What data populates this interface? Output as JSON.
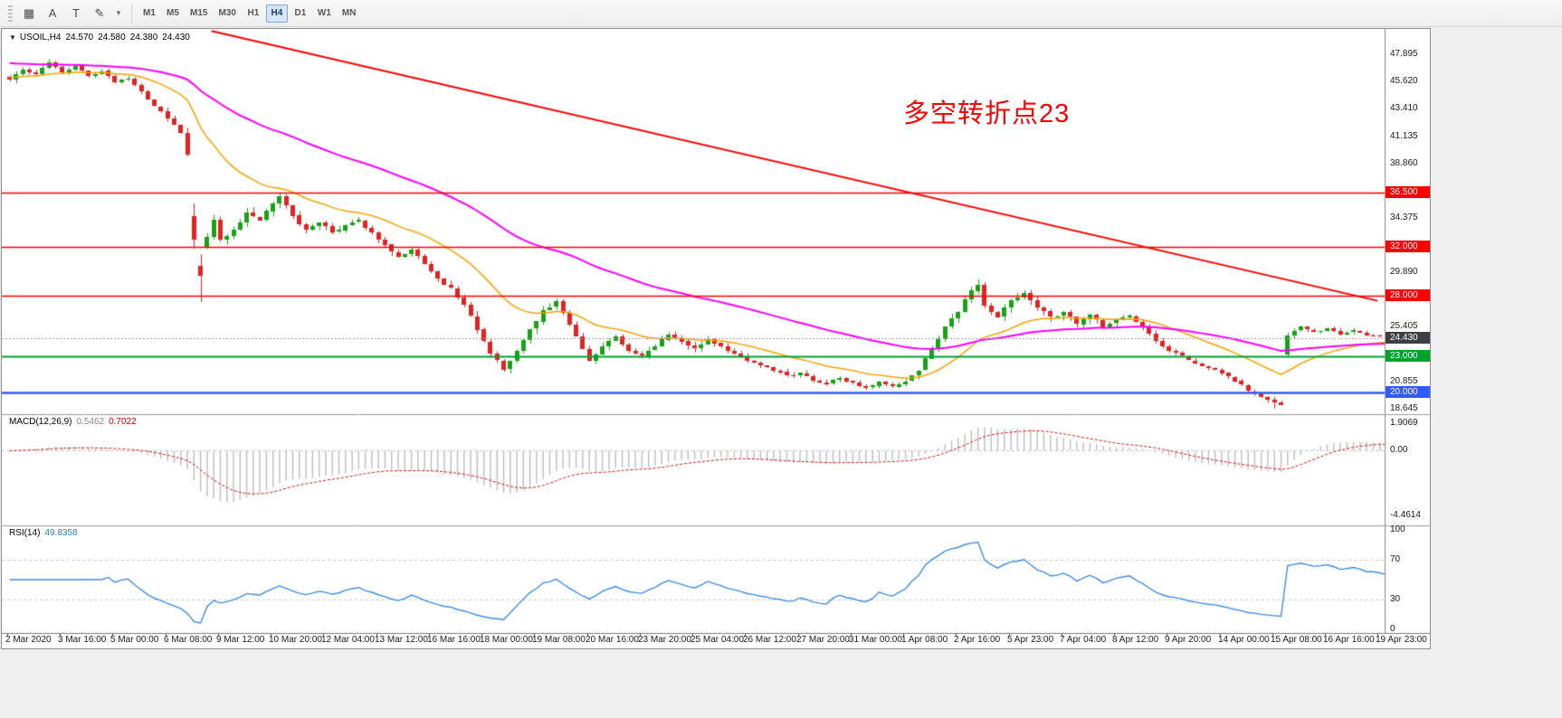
{
  "toolbar": {
    "icons": [
      {
        "name": "chart-grid-icon",
        "glyph": "▦"
      },
      {
        "name": "text-tool-icon",
        "glyph": "A"
      },
      {
        "name": "template-icon",
        "glyph": "T"
      },
      {
        "name": "draw-tools-icon",
        "glyph": "✎"
      },
      {
        "name": "chevron-down-icon",
        "glyph": "▾"
      }
    ],
    "timeframes": [
      "M1",
      "M5",
      "M15",
      "M30",
      "H1",
      "H4",
      "D1",
      "W1",
      "MN"
    ],
    "active_timeframe": "H4"
  },
  "chart": {
    "header": {
      "expander": "▼",
      "symbol": "USOIL,H4",
      "open": "24.570",
      "high": "24.580",
      "low": "24.380",
      "close": "24.430"
    },
    "annotation": {
      "text": "多空转折点23",
      "color": "#ff0000"
    },
    "price_axis": {
      "range": [
        18.2,
        49.9
      ],
      "labels": [
        {
          "label": "47.895",
          "value": 47.895
        },
        {
          "label": "45.620",
          "value": 45.62
        },
        {
          "label": "43.410",
          "value": 43.41
        },
        {
          "label": "41.135",
          "value": 41.135
        },
        {
          "label": "38.860",
          "value": 38.86
        },
        {
          "label": "34.375",
          "value": 34.375
        },
        {
          "label": "29.890",
          "value": 29.89
        },
        {
          "label": "25.405",
          "value": 25.405
        },
        {
          "label": "20.855",
          "value": 20.855
        },
        {
          "label": "18.645",
          "value": 18.645
        }
      ]
    },
    "levels": [
      {
        "label": "36.500",
        "value": 36.5,
        "color": "#ff0000",
        "width": 1.5
      },
      {
        "label": "32.000",
        "value": 32.0,
        "color": "#ff0000",
        "width": 1.5
      },
      {
        "label": "28.000",
        "value": 28.0,
        "color": "#ff0000",
        "width": 1.5
      },
      {
        "label": "23.000",
        "value": 23.0,
        "color": "#00a22e",
        "width": 2
      },
      {
        "label": "20.000",
        "value": 20.0,
        "color": "#2f5bff",
        "width": 2.5
      }
    ],
    "current_price": {
      "label": "24.430",
      "value": 24.43,
      "tag_color": "#3c3f44",
      "line_color": "#9aa0a6"
    },
    "trendline": {
      "from_bar": 31,
      "from_price": 49.8,
      "to_bar": 208,
      "to_price": 27.55,
      "color": "#ff0000",
      "width": 2
    },
    "time_axis": {
      "bars_per_label": 8,
      "labels": [
        "2 Mar 2020",
        "3 Mar 16:00",
        "5 Mar 00:00",
        "6 Mar 08:00",
        "9 Mar 12:00",
        "10 Mar 20:00",
        "12 Mar 04:00",
        "13 Mar 12:00",
        "16 Mar 16:00",
        "18 Mar 00:00",
        "19 Mar 08:00",
        "20 Mar 16:00",
        "23 Mar 20:00",
        "25 Mar 04:00",
        "26 Mar 12:00",
        "27 Mar 20:00",
        "31 Mar 00:00",
        "1 Apr 08:00",
        "2 Apr 16:00",
        "5 Apr 23:00",
        "7 Apr 04:00",
        "8 Apr 12:00",
        "9 Apr 20:00",
        "14 Apr 00:00",
        "15 Apr 08:00",
        "16 Apr 16:00",
        "19 Apr 23:00"
      ]
    }
  },
  "chart_data": {
    "type": "candlestick",
    "symbol": "USOIL",
    "timeframe": "H4",
    "bars_total": 210,
    "up_color": "#16a316",
    "down_color": "#e32222",
    "close_anchors": [
      [
        0,
        45.8,
        0.7
      ],
      [
        2,
        46.6,
        0.7
      ],
      [
        4,
        46.2,
        0.7
      ],
      [
        6,
        47.2,
        0.7
      ],
      [
        8,
        46.4,
        0.7
      ],
      [
        10,
        46.9,
        0.6
      ],
      [
        12,
        46.1,
        0.6
      ],
      [
        14,
        46.5,
        0.6
      ],
      [
        16,
        45.6,
        0.6
      ],
      [
        18,
        45.9,
        0.6
      ],
      [
        20,
        44.8,
        0.7
      ],
      [
        22,
        43.6,
        0.8
      ],
      [
        24,
        42.6,
        0.8
      ],
      [
        26,
        41.4,
        0.8
      ],
      [
        27,
        39.6,
        1.4
      ],
      [
        28,
        32.6,
        3.0
      ],
      [
        29,
        29.6,
        2.6
      ],
      [
        30,
        32.8,
        2.4
      ],
      [
        31,
        34.2,
        1.8
      ],
      [
        32,
        32.6,
        1.6
      ],
      [
        34,
        33.4,
        1.4
      ],
      [
        36,
        34.8,
        1.3
      ],
      [
        38,
        34.2,
        1.2
      ],
      [
        40,
        35.6,
        1.2
      ],
      [
        41,
        36.2,
        1.1
      ],
      [
        43,
        34.6,
        1.1
      ],
      [
        45,
        33.4,
        1.0
      ],
      [
        47,
        34.0,
        1.0
      ],
      [
        49,
        33.2,
        0.9
      ],
      [
        51,
        33.8,
        0.9
      ],
      [
        53,
        34.2,
        0.9
      ],
      [
        55,
        33.2,
        0.9
      ],
      [
        57,
        32.2,
        0.9
      ],
      [
        59,
        31.2,
        0.9
      ],
      [
        61,
        31.8,
        0.8
      ],
      [
        63,
        30.6,
        0.8
      ],
      [
        65,
        29.4,
        0.9
      ],
      [
        67,
        28.6,
        0.9
      ],
      [
        69,
        27.2,
        0.9
      ],
      [
        71,
        25.2,
        1.1
      ],
      [
        73,
        23.2,
        1.1
      ],
      [
        75,
        21.9,
        1.0
      ],
      [
        77,
        23.4,
        1.0
      ],
      [
        79,
        25.2,
        1.1
      ],
      [
        81,
        26.8,
        1.1
      ],
      [
        83,
        27.5,
        1.0
      ],
      [
        85,
        25.6,
        1.0
      ],
      [
        87,
        23.6,
        1.0
      ],
      [
        88,
        22.6,
        0.9
      ],
      [
        90,
        23.8,
        0.9
      ],
      [
        92,
        24.6,
        0.9
      ],
      [
        94,
        23.4,
        0.8
      ],
      [
        96,
        23.0,
        0.8
      ],
      [
        98,
        23.8,
        0.8
      ],
      [
        100,
        24.8,
        0.8
      ],
      [
        102,
        24.2,
        0.8
      ],
      [
        104,
        23.6,
        0.8
      ],
      [
        106,
        24.4,
        0.8
      ],
      [
        108,
        23.8,
        0.7
      ],
      [
        110,
        23.2,
        0.7
      ],
      [
        112,
        22.6,
        0.7
      ],
      [
        114,
        22.2,
        0.7
      ],
      [
        116,
        21.8,
        0.7
      ],
      [
        118,
        21.4,
        0.7
      ],
      [
        120,
        21.6,
        0.7
      ],
      [
        122,
        21.0,
        0.6
      ],
      [
        124,
        20.7,
        0.6
      ],
      [
        126,
        21.2,
        0.6
      ],
      [
        128,
        20.8,
        0.6
      ],
      [
        130,
        20.4,
        0.6
      ],
      [
        132,
        20.9,
        0.6
      ],
      [
        134,
        20.5,
        0.6
      ],
      [
        136,
        20.9,
        0.6
      ],
      [
        138,
        21.8,
        0.9
      ],
      [
        140,
        23.6,
        1.1
      ],
      [
        142,
        25.4,
        1.2
      ],
      [
        144,
        26.6,
        1.2
      ],
      [
        146,
        28.4,
        1.3
      ],
      [
        147,
        28.9,
        1.3
      ],
      [
        148,
        27.2,
        1.2
      ],
      [
        150,
        26.2,
        1.1
      ],
      [
        152,
        27.6,
        1.1
      ],
      [
        154,
        28.2,
        1.0
      ],
      [
        156,
        27.0,
        1.0
      ],
      [
        158,
        26.2,
        1.0
      ],
      [
        160,
        26.6,
        0.9
      ],
      [
        162,
        25.6,
        0.9
      ],
      [
        164,
        26.4,
        0.9
      ],
      [
        166,
        25.4,
        0.9
      ],
      [
        168,
        26.0,
        0.9
      ],
      [
        170,
        26.3,
        0.8
      ],
      [
        172,
        25.4,
        0.8
      ],
      [
        174,
        24.2,
        0.8
      ],
      [
        176,
        23.4,
        0.8
      ],
      [
        178,
        23.0,
        0.7
      ],
      [
        180,
        22.4,
        0.7
      ],
      [
        182,
        22.0,
        0.7
      ],
      [
        184,
        21.6,
        0.7
      ],
      [
        186,
        20.9,
        0.7
      ],
      [
        188,
        20.1,
        0.7
      ],
      [
        190,
        19.6,
        0.7
      ],
      [
        192,
        19.2,
        0.7
      ],
      [
        193,
        19.0,
        0.6
      ],
      [
        194,
        24.7,
        0.9
      ],
      [
        196,
        25.4,
        0.6
      ],
      [
        198,
        25.0,
        0.5
      ],
      [
        200,
        25.3,
        0.5
      ],
      [
        202,
        24.8,
        0.5
      ],
      [
        204,
        25.1,
        0.5
      ],
      [
        206,
        24.7,
        0.4
      ],
      [
        208,
        24.6,
        0.4
      ],
      [
        209,
        24.43,
        0.35
      ]
    ],
    "forced_extremes": [
      {
        "bar": 41,
        "high": 36.48
      },
      {
        "bar": 147,
        "high": 29.18
      },
      {
        "bar": 29,
        "low": 27.45
      },
      {
        "bar": 192,
        "low": 18.65
      }
    ],
    "moving_averages": [
      {
        "name": "fast-ma",
        "period": 21,
        "color": "#ffa000",
        "seed": 46.0,
        "width": 1.5
      },
      {
        "name": "slow-ma",
        "period": 62,
        "color": "#ff00ff",
        "seed": 47.2,
        "width": 2
      }
    ]
  },
  "macd": {
    "label": "MACD(12,26,9)",
    "main_value": "0.5462",
    "signal_value": "0.7022",
    "params": {
      "fast": 12,
      "slow": 26,
      "signal": 9
    },
    "range": [
      -4.9,
      2.2
    ],
    "axis_labels": [
      {
        "label": "1.9069",
        "value": 1.9069
      },
      {
        "label": "0.00",
        "value": 0
      },
      {
        "label": "-4.4614",
        "value": -4.4614
      }
    ],
    "histogram_color": "#bdbdbd",
    "signal_color": "#e01010"
  },
  "rsi": {
    "label": "RSI(14)",
    "value": "49.8358",
    "period": 14,
    "range": [
      0,
      100
    ],
    "levels": [
      70,
      30
    ],
    "axis_labels": [
      {
        "label": "100",
        "value": 100
      },
      {
        "label": "70",
        "value": 70
      },
      {
        "label": "30",
        "value": 30
      },
      {
        "label": "0",
        "value": 0
      }
    ],
    "color": "#3d8ce8"
  }
}
